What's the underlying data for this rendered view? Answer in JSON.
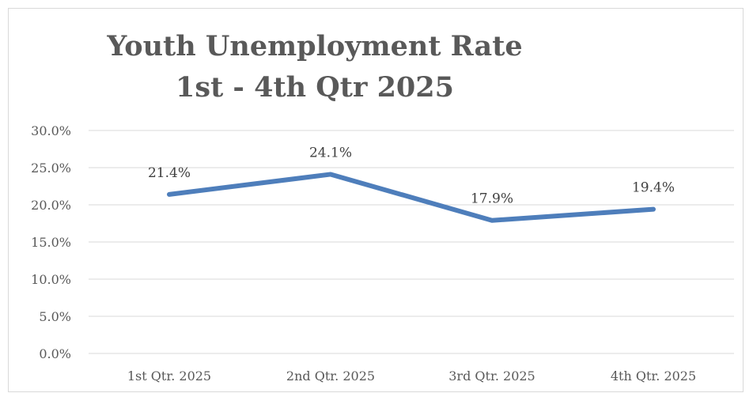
{
  "chart_data": {
    "type": "line",
    "title_lines": [
      "Youth Unemployment Rate",
      "1st -  4th Qtr 2025"
    ],
    "categories": [
      "1st Qtr. 2025",
      "2nd Qtr. 2025",
      "3rd Qtr. 2025",
      "4th Qtr. 2025"
    ],
    "series": [
      {
        "values": [
          21.4,
          24.1,
          17.9,
          19.4
        ],
        "data_labels": [
          "21.4%",
          "24.1%",
          "17.9%",
          "19.4%"
        ],
        "color": "#4e7ebb"
      }
    ],
    "y_ticks": [
      0,
      5,
      10,
      15,
      20,
      25,
      30
    ],
    "y_tick_labels": [
      "0.0%",
      "5.0%",
      "10.0%",
      "15.0%",
      "20.0%",
      "25.0%",
      "30.0%"
    ],
    "ylim": [
      0,
      30
    ],
    "grid": true,
    "legend": "none",
    "xlabel": "",
    "ylabel": ""
  }
}
